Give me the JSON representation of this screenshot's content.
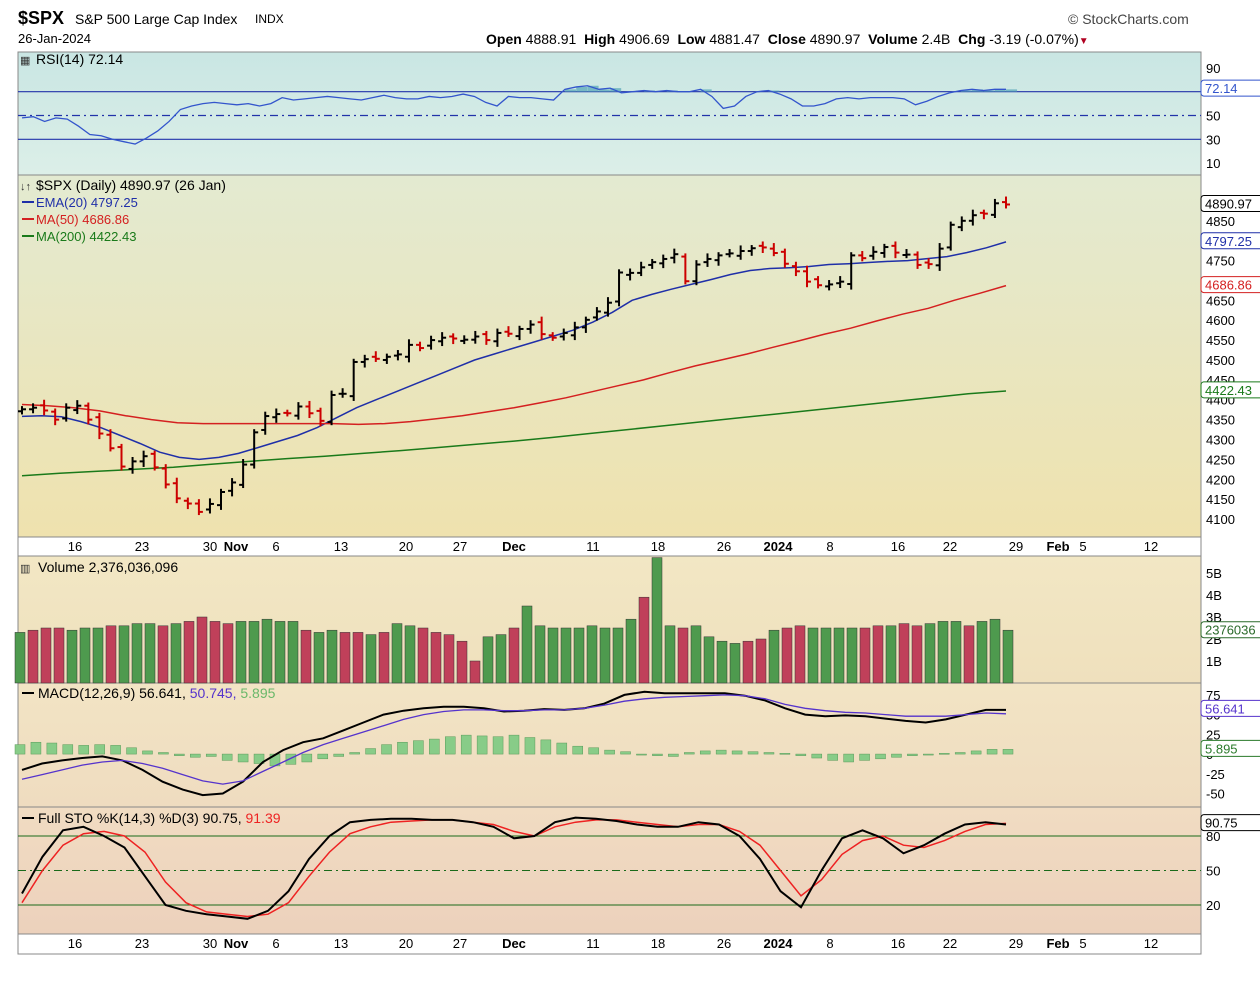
{
  "header": {
    "ticker": "$SPX",
    "name": "S&P 500 Large Cap Index",
    "exchange": "INDX",
    "date": "26-Jan-2024",
    "brand": "StockCharts.com",
    "open_label": "Open",
    "open": "4888.91",
    "high_label": "High",
    "high": "4906.69",
    "low_label": "Low",
    "low": "4881.47",
    "close_label": "Close",
    "close": "4890.97",
    "volume_label": "Volume",
    "volume": "2.4B",
    "chg_label": "Chg",
    "chg": "-3.19 (-0.07%)",
    "chg_arrow": "▼"
  },
  "colors": {
    "up_bar": "#000000",
    "down_bar": "#cc0000",
    "ema20": "#1f2fa8",
    "ma50": "#d42020",
    "ma200": "#1a7a1a",
    "rsi_line": "#3355cc",
    "rsi_fill": "#5aa8b8",
    "vol_up": "#4e9a4e",
    "vol_down": "#c0405a",
    "macd_line": "#000000",
    "macd_signal": "#5533cc",
    "macd_hist": "#88cc88",
    "sto_k": "#000000",
    "sto_d": "#ee2222"
  },
  "x_axis": {
    "labels": [
      {
        "t": "16",
        "bold": false
      },
      {
        "t": "23",
        "bold": false
      },
      {
        "t": "30",
        "bold": false
      },
      {
        "t": "Nov",
        "bold": true
      },
      {
        "t": "6",
        "bold": false
      },
      {
        "t": "13",
        "bold": false
      },
      {
        "t": "20",
        "bold": false
      },
      {
        "t": "27",
        "bold": false
      },
      {
        "t": "Dec",
        "bold": true
      },
      {
        "t": "11",
        "bold": false
      },
      {
        "t": "18",
        "bold": false
      },
      {
        "t": "26",
        "bold": false
      },
      {
        "t": "2024",
        "bold": true
      },
      {
        "t": "8",
        "bold": false
      },
      {
        "t": "16",
        "bold": false
      },
      {
        "t": "22",
        "bold": false
      },
      {
        "t": "29",
        "bold": false
      },
      {
        "t": "Feb",
        "bold": true
      },
      {
        "t": "5",
        "bold": false
      },
      {
        "t": "12",
        "bold": false
      }
    ]
  },
  "chart_data": [
    {
      "type": "line",
      "panel": "RSI",
      "label": "RSI(14)",
      "last": "72.14",
      "ylim": [
        0,
        100
      ],
      "ticks": [
        "90",
        "70",
        "50",
        "30",
        "10"
      ],
      "levels": [
        70,
        50,
        30
      ],
      "values": [
        48,
        49,
        45,
        48,
        47,
        41,
        34,
        33,
        30,
        28,
        26,
        31,
        37,
        45,
        55,
        58,
        60,
        61,
        60,
        59,
        60,
        58,
        60,
        65,
        63,
        64,
        65,
        66,
        65,
        64,
        63,
        65,
        67,
        65,
        64,
        64,
        66,
        65,
        66,
        68,
        66,
        61,
        58,
        66,
        65,
        65,
        64,
        63,
        72,
        74,
        75,
        72,
        73,
        69,
        70,
        71,
        70,
        71,
        70,
        70,
        72,
        66,
        56,
        58,
        66,
        70,
        71,
        68,
        64,
        58,
        58,
        60,
        64,
        65,
        64,
        65,
        65,
        65,
        64,
        59,
        62,
        66,
        69,
        71,
        72,
        71,
        72,
        72
      ]
    },
    {
      "type": "bar",
      "panel": "Price",
      "label": "$SPX (Daily)",
      "last": "4890.97",
      "last_date": "26 Jan",
      "ylim": [
        4080,
        4940
      ],
      "ticks": [
        "4850",
        "4800",
        "4750",
        "4700",
        "4650",
        "4600",
        "4550",
        "4500",
        "4450",
        "4400",
        "4350",
        "4300",
        "4250",
        "4200",
        "4150",
        "4100"
      ],
      "ohlc_closes": [
        4376,
        4380,
        4373,
        4350,
        4380,
        4385,
        4350,
        4315,
        4278,
        4232,
        4245,
        4258,
        4230,
        4187,
        4152,
        4139,
        4118,
        4138,
        4168,
        4192,
        4237,
        4318,
        4359,
        4364,
        4366,
        4383,
        4366,
        4347,
        4412,
        4415,
        4495,
        4502,
        4503,
        4508,
        4514,
        4538,
        4530,
        4550,
        4556,
        4554,
        4551,
        4559,
        4550,
        4568,
        4566,
        4578,
        4589,
        4565,
        4556,
        4568,
        4582,
        4601,
        4622,
        4644,
        4720,
        4719,
        4733,
        4746,
        4754,
        4766,
        4698,
        4740,
        4754,
        4763,
        4768,
        4774,
        4781,
        4783,
        4769,
        4742,
        4723,
        4697,
        4688,
        4690,
        4697,
        4763,
        4756,
        4772,
        4784,
        4770,
        4765,
        4739,
        4741,
        4780,
        4840,
        4850,
        4864,
        4868,
        4894,
        4891
      ]
    },
    {
      "type": "line",
      "panel": "Price overlays",
      "series": [
        {
          "name": "EMA(20)",
          "last": "4797.25",
          "values": [
            4358,
            4360,
            4357,
            4345,
            4330,
            4310,
            4290,
            4268,
            4255,
            4250,
            4255,
            4265,
            4280,
            4295,
            4310,
            4330,
            4355,
            4380,
            4400,
            4420,
            4440,
            4460,
            4480,
            4500,
            4515,
            4530,
            4545,
            4560,
            4575,
            4595,
            4620,
            4650,
            4665,
            4678,
            4690,
            4702,
            4715,
            4725,
            4730,
            4732,
            4735,
            4740,
            4742,
            4745,
            4748,
            4750,
            4755,
            4760,
            4770,
            4782,
            4797
          ]
        },
        {
          "name": "MA(50)",
          "last": "4686.86",
          "values": [
            4388,
            4385,
            4380,
            4372,
            4360,
            4350,
            4342,
            4340,
            4340,
            4340,
            4340,
            4340,
            4340,
            4338,
            4340,
            4345,
            4352,
            4360,
            4370,
            4380,
            4392,
            4405,
            4420,
            4435,
            4450,
            4468,
            4485,
            4500,
            4515,
            4532,
            4548,
            4565,
            4580,
            4598,
            4615,
            4630,
            4650,
            4668,
            4687
          ]
        },
        {
          "name": "MA(200)",
          "last": "4422.43",
          "values": [
            4209,
            4215,
            4220,
            4225,
            4230,
            4238,
            4245,
            4252,
            4258,
            4265,
            4272,
            4280,
            4288,
            4296,
            4305,
            4315,
            4325,
            4335,
            4345,
            4355,
            4365,
            4375,
            4385,
            4395,
            4405,
            4415,
            4422
          ]
        }
      ]
    },
    {
      "type": "bar",
      "panel": "Volume",
      "label": "Volume",
      "last": "2,376,036,096",
      "last_short": "2376036",
      "ticks": [
        "5B",
        "4B",
        "3B",
        "2B",
        "1B"
      ],
      "ylim": [
        0,
        5.5
      ],
      "values_billions": [
        2.3,
        2.4,
        2.5,
        2.5,
        2.4,
        2.5,
        2.5,
        2.6,
        2.6,
        2.7,
        2.7,
        2.6,
        2.7,
        2.8,
        3.0,
        2.8,
        2.7,
        2.8,
        2.8,
        2.9,
        2.8,
        2.8,
        2.4,
        2.3,
        2.4,
        2.3,
        2.3,
        2.2,
        2.3,
        2.7,
        2.6,
        2.5,
        2.3,
        2.2,
        1.9,
        1.0,
        2.1,
        2.2,
        2.5,
        3.5,
        2.6,
        2.5,
        2.5,
        2.5,
        2.6,
        2.5,
        2.5,
        2.9,
        3.9,
        5.7,
        2.6,
        2.5,
        2.6,
        2.1,
        1.9,
        1.8,
        1.9,
        2.0,
        2.4,
        2.5,
        2.6,
        2.5,
        2.5,
        2.5,
        2.5,
        2.5,
        2.6,
        2.6,
        2.7,
        2.6,
        2.7,
        2.8,
        2.8,
        2.6,
        2.8,
        2.9,
        2.4
      ],
      "down_flags": [
        0,
        1,
        1,
        1,
        0,
        0,
        0,
        1,
        0,
        0,
        0,
        1,
        0,
        1,
        1,
        1,
        1,
        0,
        0,
        0,
        0,
        0,
        1,
        0,
        0,
        1,
        1,
        0,
        1,
        0,
        0,
        1,
        1,
        1,
        1,
        1,
        0,
        0,
        1,
        0,
        0,
        0,
        0,
        0,
        0,
        0,
        0,
        0,
        1,
        0,
        0,
        1,
        0,
        0,
        0,
        0,
        1,
        1,
        0,
        1,
        1,
        0,
        0,
        0,
        0,
        1,
        1,
        0,
        1,
        1,
        0,
        0,
        0,
        1,
        0,
        0,
        0
      ]
    },
    {
      "type": "line",
      "panel": "MACD",
      "label": "MACD(12,26,9)",
      "macd": "56.641",
      "signal": "50.745",
      "hist": "5.895",
      "ticks": [
        "75",
        "50",
        "25",
        "0",
        "-25",
        "-50"
      ],
      "ylim": [
        -62,
        85
      ],
      "series": [
        {
          "name": "MACD",
          "values": [
            -20,
            -12,
            -8,
            -5,
            -3,
            -8,
            -20,
            -35,
            -45,
            -52,
            -50,
            -35,
            -10,
            5,
            15,
            20,
            30,
            40,
            50,
            55,
            58,
            60,
            60,
            58,
            54,
            55,
            57,
            56,
            58,
            64,
            75,
            79,
            77,
            77,
            77,
            77,
            74,
            68,
            58,
            50,
            48,
            49,
            48,
            45,
            42,
            40,
            44,
            50,
            56,
            56
          ]
        },
        {
          "name": "Signal",
          "values": [
            -32,
            -26,
            -20,
            -14,
            -10,
            -8,
            -12,
            -18,
            -26,
            -34,
            -38,
            -34,
            -22,
            -10,
            2,
            12,
            20,
            28,
            36,
            44,
            50,
            54,
            56,
            56,
            55,
            55,
            56,
            56,
            58,
            62,
            67,
            70,
            72,
            73,
            74,
            75,
            74,
            70,
            63,
            58,
            55,
            53,
            52,
            50,
            48,
            48,
            48,
            50,
            52,
            51
          ]
        }
      ],
      "histogram": [
        12,
        15,
        14,
        12,
        11,
        12,
        11,
        8,
        4,
        2,
        -2,
        -4,
        -3,
        -8,
        -10,
        -12,
        -15,
        -13,
        -10,
        -6,
        -3,
        2,
        7,
        12,
        15,
        17,
        19,
        22,
        24,
        23,
        22,
        24,
        21,
        18,
        14,
        10,
        8,
        5,
        3,
        0,
        -2,
        -3,
        2,
        4,
        5,
        4,
        3,
        2,
        1,
        -2,
        -5,
        -8,
        -10,
        -8,
        -6,
        -4,
        -2,
        -1,
        1,
        2,
        4,
        6,
        6
      ]
    },
    {
      "type": "line",
      "panel": "Full STO",
      "label": "Full STO %K(14,3) %D(3)",
      "k": "90.75",
      "d": "91.39",
      "ticks": [
        "80",
        "50",
        "20"
      ],
      "levels": [
        80,
        50,
        20
      ],
      "ylim": [
        0,
        100
      ],
      "series": [
        {
          "name": "%K",
          "values": [
            30,
            62,
            85,
            88,
            80,
            70,
            45,
            20,
            15,
            12,
            10,
            8,
            15,
            32,
            60,
            80,
            92,
            94,
            95,
            95,
            94,
            94,
            92,
            88,
            78,
            80,
            92,
            96,
            95,
            93,
            90,
            88,
            88,
            92,
            90,
            80,
            60,
            32,
            18,
            50,
            78,
            85,
            78,
            65,
            72,
            82,
            90,
            92,
            90
          ]
        },
        {
          "name": "%D",
          "values": [
            22,
            50,
            72,
            82,
            84,
            80,
            66,
            40,
            22,
            14,
            12,
            10,
            12,
            22,
            45,
            66,
            82,
            88,
            92,
            93,
            94,
            94,
            92,
            90,
            84,
            80,
            88,
            92,
            94,
            94,
            92,
            90,
            88,
            90,
            90,
            84,
            72,
            50,
            28,
            42,
            64,
            76,
            80,
            72,
            70,
            76,
            84,
            90,
            91
          ]
        }
      ]
    }
  ]
}
